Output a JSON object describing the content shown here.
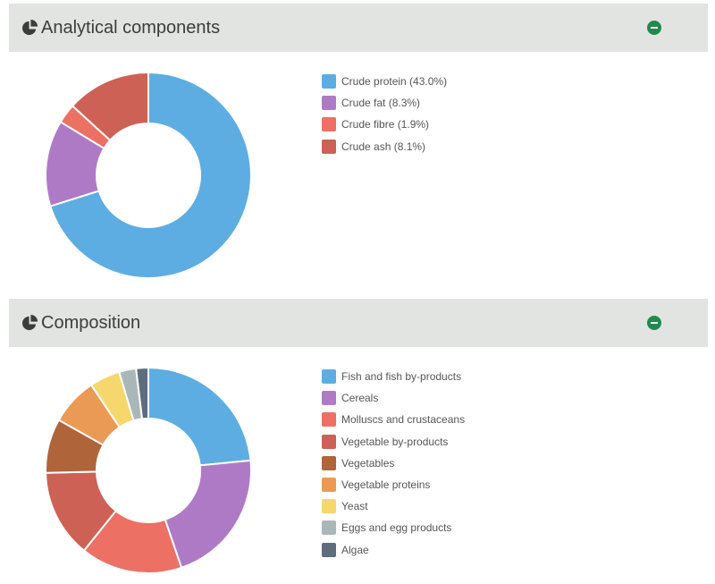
{
  "panels": [
    {
      "title": "Analytical components",
      "collapse_icon": "minus-circle-icon",
      "title_icon": "pie-chart-icon"
    },
    {
      "title": "Composition",
      "collapse_icon": "minus-circle-icon",
      "title_icon": "pie-chart-icon"
    }
  ],
  "colors": {
    "header_bg": "#e2e4e1",
    "collapse_green": "#1f8a4c",
    "blue": "#5dade2",
    "purple": "#af7ac5",
    "salmon": "#ec7063",
    "red": "#cd6155",
    "brown": "#b0643a",
    "orange": "#eb9a55",
    "yellow": "#f5d76e",
    "gray": "#aab7b8",
    "slate": "#5d6d7e"
  },
  "chart_data": [
    {
      "type": "donut",
      "title": "Analytical components",
      "labels": [
        "Crude protein",
        "Crude fat",
        "Crude fibre",
        "Crude ash"
      ],
      "values": [
        43.0,
        8.3,
        1.9,
        8.1
      ],
      "legend": [
        "Crude protein (43.0%)",
        "Crude fat (8.3%)",
        "Crude fibre (1.9%)",
        "Crude ash (8.1%)"
      ],
      "colors": [
        "#5dade2",
        "#af7ac5",
        "#ec7063",
        "#cd6155"
      ],
      "legend_position": "right"
    },
    {
      "type": "donut",
      "title": "Composition",
      "labels": [
        "Fish and fish by-products",
        "Cereals",
        "Molluscs and crustaceans",
        "Vegetable by-products",
        "Vegetables",
        "Vegetable proteins",
        "Yeast",
        "Eggs and egg products",
        "Algae"
      ],
      "values": [
        22,
        20,
        15,
        13,
        8,
        7,
        4.5,
        2.5,
        1.8
      ],
      "legend": [
        "Fish and fish by-products",
        "Cereals",
        "Molluscs and crustaceans",
        "Vegetable by-products",
        "Vegetables",
        "Vegetable proteins",
        "Yeast",
        "Eggs and egg products",
        "Algae"
      ],
      "colors": [
        "#5dade2",
        "#af7ac5",
        "#ec7063",
        "#cd6155",
        "#b0643a",
        "#eb9a55",
        "#f5d76e",
        "#aab7b8",
        "#5d6d7e"
      ],
      "legend_position": "right"
    }
  ]
}
